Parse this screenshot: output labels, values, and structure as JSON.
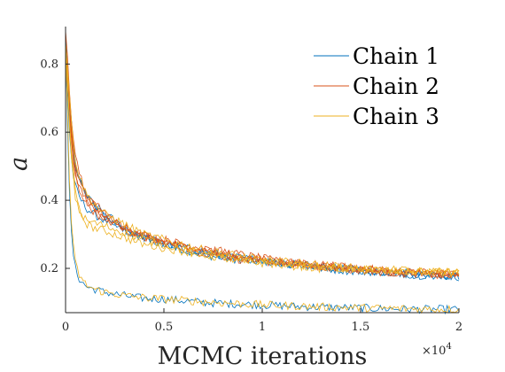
{
  "chart_data": {
    "type": "line",
    "title": "",
    "xlabel": "MCMC iterations",
    "ylabel": "a",
    "x_exponent_label": "×10",
    "x_exponent_power": "4",
    "xlim": [
      0,
      20000
    ],
    "ylim": [
      0.07,
      0.91
    ],
    "x_ticks": [
      {
        "value": 0,
        "label": "0"
      },
      {
        "value": 5000,
        "label": "0.5"
      },
      {
        "value": 10000,
        "label": "1"
      },
      {
        "value": 15000,
        "label": "1.5"
      },
      {
        "value": 20000,
        "label": "2"
      }
    ],
    "y_ticks": [
      {
        "value": 0.2,
        "label": "0.2"
      },
      {
        "value": 0.4,
        "label": "0.4"
      },
      {
        "value": 0.6,
        "label": "0.6"
      },
      {
        "value": 0.8,
        "label": "0.8"
      }
    ],
    "grid": false,
    "box": false,
    "legend_position": "top-right",
    "x": [
      0,
      100,
      200,
      300,
      400,
      500,
      700,
      900,
      1100,
      1400,
      1700,
      2000,
      2500,
      3000,
      3500,
      4000,
      5000,
      6000,
      7000,
      8000,
      9000,
      10000,
      11000,
      12000,
      13000,
      14000,
      15000,
      16000,
      17000,
      18000,
      19000,
      20000
    ],
    "series": [
      {
        "name": "Chain 1",
        "color": "#0072BD",
        "runs": [
          [
            0.88,
            0.8,
            0.7,
            0.62,
            0.56,
            0.51,
            0.46,
            0.43,
            0.41,
            0.39,
            0.37,
            0.35,
            0.33,
            0.31,
            0.3,
            0.29,
            0.27,
            0.255,
            0.24,
            0.23,
            0.225,
            0.22,
            0.215,
            0.21,
            0.205,
            0.2,
            0.195,
            0.19,
            0.19,
            0.185,
            0.18,
            0.18
          ],
          [
            0.85,
            0.72,
            0.6,
            0.52,
            0.47,
            0.44,
            0.41,
            0.39,
            0.375,
            0.36,
            0.35,
            0.34,
            0.325,
            0.31,
            0.3,
            0.29,
            0.27,
            0.255,
            0.245,
            0.235,
            0.225,
            0.22,
            0.215,
            0.21,
            0.205,
            0.2,
            0.195,
            0.19,
            0.185,
            0.18,
            0.18,
            0.175
          ],
          [
            0.87,
            0.62,
            0.42,
            0.3,
            0.24,
            0.2,
            0.17,
            0.155,
            0.145,
            0.14,
            0.135,
            0.13,
            0.125,
            0.12,
            0.115,
            0.112,
            0.11,
            0.105,
            0.1,
            0.097,
            0.095,
            0.093,
            0.09,
            0.088,
            0.086,
            0.085,
            0.084,
            0.082,
            0.081,
            0.08,
            0.08,
            0.079
          ],
          [
            0.86,
            0.77,
            0.68,
            0.6,
            0.54,
            0.5,
            0.46,
            0.43,
            0.41,
            0.39,
            0.375,
            0.36,
            0.34,
            0.32,
            0.305,
            0.29,
            0.275,
            0.26,
            0.25,
            0.24,
            0.23,
            0.225,
            0.215,
            0.21,
            0.2,
            0.195,
            0.19,
            0.19,
            0.185,
            0.18,
            0.18,
            0.175
          ]
        ]
      },
      {
        "name": "Chain 2",
        "color": "#D95319",
        "runs": [
          [
            0.9,
            0.82,
            0.72,
            0.64,
            0.58,
            0.53,
            0.48,
            0.44,
            0.42,
            0.4,
            0.38,
            0.36,
            0.335,
            0.315,
            0.3,
            0.29,
            0.275,
            0.26,
            0.245,
            0.235,
            0.225,
            0.22,
            0.215,
            0.21,
            0.205,
            0.2,
            0.195,
            0.19,
            0.19,
            0.185,
            0.18,
            0.18
          ],
          [
            0.84,
            0.74,
            0.64,
            0.57,
            0.51,
            0.47,
            0.43,
            0.41,
            0.39,
            0.37,
            0.355,
            0.345,
            0.33,
            0.315,
            0.305,
            0.295,
            0.28,
            0.265,
            0.255,
            0.24,
            0.23,
            0.225,
            0.22,
            0.215,
            0.21,
            0.205,
            0.2,
            0.195,
            0.19,
            0.19,
            0.185,
            0.18
          ],
          [
            0.86,
            0.78,
            0.69,
            0.61,
            0.55,
            0.5,
            0.455,
            0.43,
            0.41,
            0.39,
            0.37,
            0.355,
            0.34,
            0.325,
            0.31,
            0.3,
            0.285,
            0.27,
            0.26,
            0.25,
            0.24,
            0.23,
            0.22,
            0.215,
            0.21,
            0.205,
            0.2,
            0.195,
            0.19,
            0.19,
            0.185,
            0.185
          ],
          [
            0.85,
            0.76,
            0.66,
            0.58,
            0.52,
            0.48,
            0.44,
            0.415,
            0.395,
            0.375,
            0.36,
            0.35,
            0.335,
            0.32,
            0.305,
            0.295,
            0.28,
            0.265,
            0.25,
            0.24,
            0.23,
            0.225,
            0.22,
            0.21,
            0.205,
            0.2,
            0.195,
            0.19,
            0.185,
            0.185,
            0.18,
            0.175
          ]
        ]
      },
      {
        "name": "Chain 3",
        "color": "#EDB120",
        "runs": [
          [
            0.86,
            0.76,
            0.64,
            0.55,
            0.48,
            0.42,
            0.37,
            0.345,
            0.33,
            0.32,
            0.315,
            0.31,
            0.3,
            0.29,
            0.28,
            0.27,
            0.26,
            0.25,
            0.24,
            0.23,
            0.225,
            0.22,
            0.215,
            0.21,
            0.205,
            0.2,
            0.2,
            0.195,
            0.195,
            0.19,
            0.19,
            0.19
          ],
          [
            0.84,
            0.66,
            0.46,
            0.33,
            0.26,
            0.215,
            0.18,
            0.16,
            0.15,
            0.14,
            0.135,
            0.13,
            0.125,
            0.12,
            0.117,
            0.114,
            0.11,
            0.106,
            0.102,
            0.099,
            0.096,
            0.093,
            0.091,
            0.089,
            0.087,
            0.086,
            0.084,
            0.083,
            0.082,
            0.081,
            0.08,
            0.08
          ],
          [
            0.86,
            0.79,
            0.71,
            0.63,
            0.57,
            0.52,
            0.47,
            0.44,
            0.415,
            0.395,
            0.375,
            0.36,
            0.345,
            0.33,
            0.315,
            0.3,
            0.285,
            0.27,
            0.255,
            0.245,
            0.235,
            0.225,
            0.22,
            0.215,
            0.21,
            0.205,
            0.2,
            0.195,
            0.195,
            0.19,
            0.19,
            0.185
          ],
          [
            0.87,
            0.75,
            0.62,
            0.53,
            0.46,
            0.41,
            0.37,
            0.35,
            0.34,
            0.335,
            0.33,
            0.325,
            0.315,
            0.305,
            0.295,
            0.285,
            0.27,
            0.255,
            0.24,
            0.23,
            0.22,
            0.215,
            0.21,
            0.205,
            0.2,
            0.2,
            0.195,
            0.195,
            0.19,
            0.19,
            0.19,
            0.185
          ]
        ]
      }
    ]
  }
}
